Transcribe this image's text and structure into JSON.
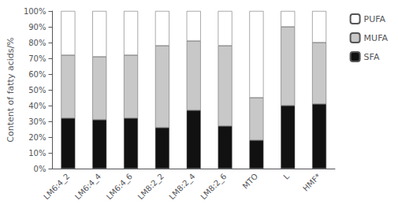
{
  "chart_data": {
    "type": "bar",
    "stacked": true,
    "categories": [
      "LM6:4_2",
      "LM6:4_4",
      "LM6:4_6",
      "LM8:2_2",
      "LM8:2_4",
      "LM8:2_6",
      "MTO",
      "L",
      "HMF*"
    ],
    "series": [
      {
        "name": "SFA",
        "color": "#111111",
        "values": [
          32,
          31,
          32,
          26,
          37,
          27,
          18,
          40,
          41
        ]
      },
      {
        "name": "MUFA",
        "color": "#c8c8c8",
        "values": [
          40,
          40,
          40,
          52,
          44,
          51,
          27,
          50,
          39
        ]
      },
      {
        "name": "PUFA",
        "color": "#ffffff",
        "values": [
          28,
          29,
          28,
          22,
          19,
          22,
          55,
          10,
          20
        ]
      }
    ],
    "ylabel": "Content of fatty acids/%",
    "ylim": [
      0,
      100
    ],
    "yticks": [
      {
        "value": 0,
        "label": "0%"
      },
      {
        "value": 10,
        "label": "10%"
      },
      {
        "value": 20,
        "label": "20%"
      },
      {
        "value": 30,
        "label": "30%"
      },
      {
        "value": 40,
        "label": "40%"
      },
      {
        "value": 50,
        "label": "50%"
      },
      {
        "value": 60,
        "label": "60%"
      },
      {
        "value": 70,
        "label": "70%"
      },
      {
        "value": 80,
        "label": "80%"
      },
      {
        "value": 90,
        "label": "90%"
      },
      {
        "value": 100,
        "label": "100%"
      }
    ],
    "grid": false,
    "legend": "right"
  }
}
